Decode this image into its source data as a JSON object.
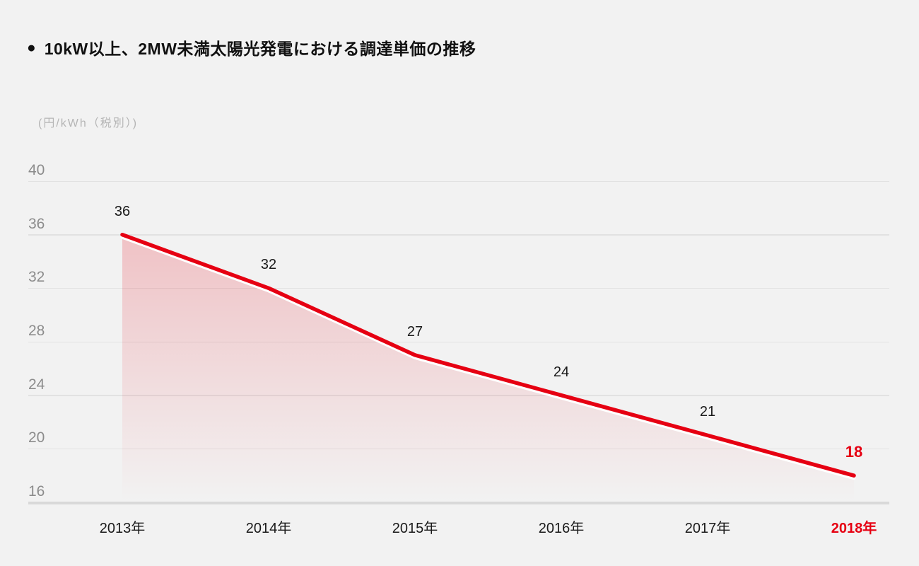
{
  "title": {
    "bullet": "●",
    "text": "10kW以上、2MW未満太陽光発電における調達単価の推移"
  },
  "colors": {
    "background": "#f2f2f2",
    "accent_red": "#e60012",
    "text_dark": "#1a1a1a",
    "grid_line": "#e2e2e2",
    "axis_bottom_line": "#d9d9d9",
    "tick_text": "#8c8c8c",
    "unit_text": "#b5b5b5",
    "line_gap_white": "#ffffff"
  },
  "chart_data": {
    "type": "area",
    "title": "10kW以上、2MW未満太陽光発電における調達単価の推移",
    "ylabel": "(円/kWh（税別）)",
    "xlabel": "",
    "x": [
      "2013年",
      "2014年",
      "2015年",
      "2016年",
      "2017年",
      "2018年"
    ],
    "values": [
      36,
      32,
      27,
      24,
      21,
      18
    ],
    "yticks": [
      40,
      36,
      32,
      28,
      24,
      20,
      16
    ],
    "ylim": [
      16,
      40
    ],
    "grid": true,
    "legend": "none",
    "highlight_last": true
  }
}
